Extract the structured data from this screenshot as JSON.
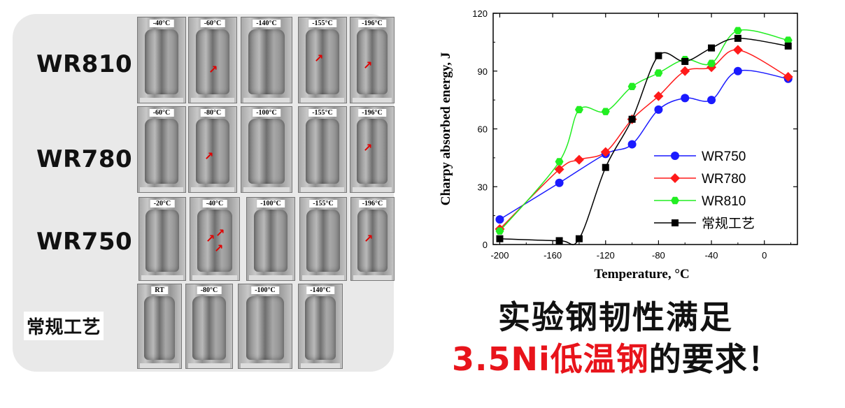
{
  "left_panel": {
    "rows": [
      {
        "label": "WR810",
        "temps": [
          "-40°C",
          "-60°C",
          "-140°C",
          "-155°C",
          "-196°C"
        ]
      },
      {
        "label": "WR780",
        "temps": [
          "-60°C",
          "-80°C",
          "-100°C",
          "-155°C",
          "-196°C"
        ]
      },
      {
        "label": "WR750",
        "temps": [
          "-20°C",
          "-40°C",
          "-100°C",
          "-155°C",
          "-196°C"
        ]
      },
      {
        "label": "常规工艺",
        "temps": [
          "RT",
          "-80°C",
          "-100°C",
          "-140°C"
        ]
      }
    ]
  },
  "chart_data": {
    "type": "line",
    "ylabel": "Charpy absorbed energy, J",
    "xlabel": "Temperature, °C",
    "xlim": [
      -205,
      25
    ],
    "ylim": [
      0,
      120
    ],
    "xticks": [
      -200,
      -160,
      -120,
      -80,
      -40,
      0
    ],
    "yticks": [
      0,
      30,
      60,
      90,
      120
    ],
    "legend_position": "bottom-right",
    "series": [
      {
        "name": "WR750",
        "color": "#1a1aff",
        "marker": "circle",
        "points": [
          [
            -200,
            13
          ],
          [
            -155,
            32
          ],
          [
            -120,
            47
          ],
          [
            -100,
            52
          ],
          [
            -80,
            70
          ],
          [
            -60,
            76
          ],
          [
            -40,
            75
          ],
          [
            -20,
            90
          ],
          [
            18,
            86
          ]
        ]
      },
      {
        "name": "WR780",
        "color": "#ff1a1a",
        "marker": "diamond",
        "points": [
          [
            -200,
            8
          ],
          [
            -155,
            39
          ],
          [
            -140,
            44
          ],
          [
            -120,
            48
          ],
          [
            -100,
            65
          ],
          [
            -80,
            77
          ],
          [
            -60,
            90
          ],
          [
            -40,
            92
          ],
          [
            -20,
            101
          ],
          [
            18,
            87
          ]
        ]
      },
      {
        "name": "WR810",
        "color": "#22ee22",
        "marker": "hexagon",
        "points": [
          [
            -200,
            7
          ],
          [
            -155,
            43
          ],
          [
            -140,
            70
          ],
          [
            -120,
            69
          ],
          [
            -100,
            82
          ],
          [
            -80,
            89
          ],
          [
            -60,
            96
          ],
          [
            -40,
            94
          ],
          [
            -20,
            111
          ],
          [
            18,
            106
          ]
        ]
      },
      {
        "name": "常规工艺",
        "color": "#000000",
        "marker": "square",
        "points": [
          [
            -200,
            3
          ],
          [
            -155,
            2
          ],
          [
            -140,
            3
          ],
          [
            -120,
            40
          ],
          [
            -100,
            65
          ],
          [
            -80,
            98
          ],
          [
            -60,
            95
          ],
          [
            -40,
            102
          ],
          [
            -20,
            107
          ],
          [
            18,
            103
          ]
        ]
      }
    ]
  },
  "caption": {
    "line1": "实验钢韧性满足",
    "line2_red": "3.5Ni低温钢",
    "line2_black": "的要求！"
  }
}
